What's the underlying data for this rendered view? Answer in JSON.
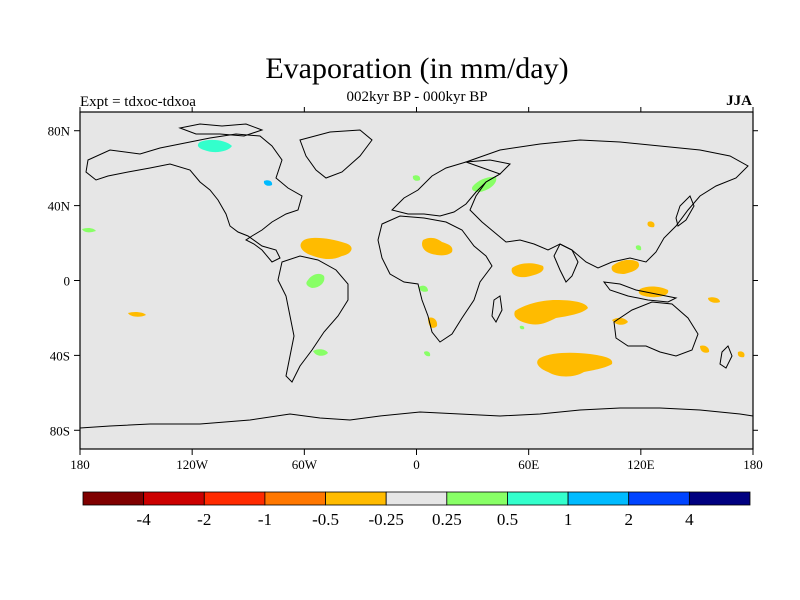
{
  "title": "Evaporation (in mm/day)",
  "subtitle": "002kyr BP - 000kyr BP",
  "experiment": "Expt = tdxoc-tdxoa",
  "season": "JJA",
  "map": {
    "x_ticks": [
      {
        "value": -180,
        "label": "180"
      },
      {
        "value": -120,
        "label": "120W"
      },
      {
        "value": -60,
        "label": "60W"
      },
      {
        "value": 0,
        "label": "0"
      },
      {
        "value": 60,
        "label": "60E"
      },
      {
        "value": 120,
        "label": "120E"
      },
      {
        "value": 180,
        "label": "180"
      }
    ],
    "y_ticks": [
      {
        "value": 80,
        "label": "80N"
      },
      {
        "value": 40,
        "label": "40N"
      },
      {
        "value": 0,
        "label": "0"
      },
      {
        "value": -40,
        "label": "40S"
      },
      {
        "value": -80,
        "label": "80S"
      }
    ],
    "lon_range": [
      -180,
      180
    ],
    "lat_range": [
      -90,
      90
    ],
    "background_color": "#e6e6e6",
    "coastline_color": "#000000"
  },
  "colorbar": {
    "colors": [
      "#800000",
      "#cc0000",
      "#ff2a00",
      "#ff7700",
      "#ffbb00",
      "#e6e6e6",
      "#88ff66",
      "#33ffcc",
      "#00bbff",
      "#0044ff",
      "#000080"
    ],
    "levels": [
      "-4",
      "-2",
      "-1",
      "-0.5",
      "-0.25",
      "0.25",
      "0.5",
      "1",
      "2",
      "4"
    ]
  }
}
